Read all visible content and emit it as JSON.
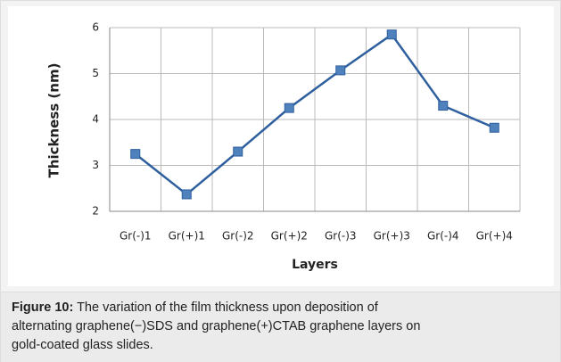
{
  "chart_data": {
    "type": "line",
    "x_label": "Layers",
    "y_label": "Thickness (nm)",
    "categories": [
      "Gr(-)1",
      "Gr(+)1",
      "Gr(-)2",
      "Gr(+)2",
      "Gr(-)3",
      "Gr(+)3",
      "Gr(-)4",
      "Gr(+)4"
    ],
    "series": [
      {
        "color": "#2e5f9e",
        "values": [
          3.25,
          2.37,
          3.3,
          4.25,
          5.07,
          5.85,
          4.3,
          3.82
        ]
      }
    ],
    "ylim": [
      2,
      6
    ],
    "yticks": [
      2,
      3,
      4,
      5,
      6
    ],
    "grid": true
  },
  "caption": {
    "label": "Figure 10:",
    "text": "The variation of the film thickness upon deposition of alternating graphene(−)SDS and graphene(+)CTAB graphene layers on gold-coated glass slides."
  }
}
